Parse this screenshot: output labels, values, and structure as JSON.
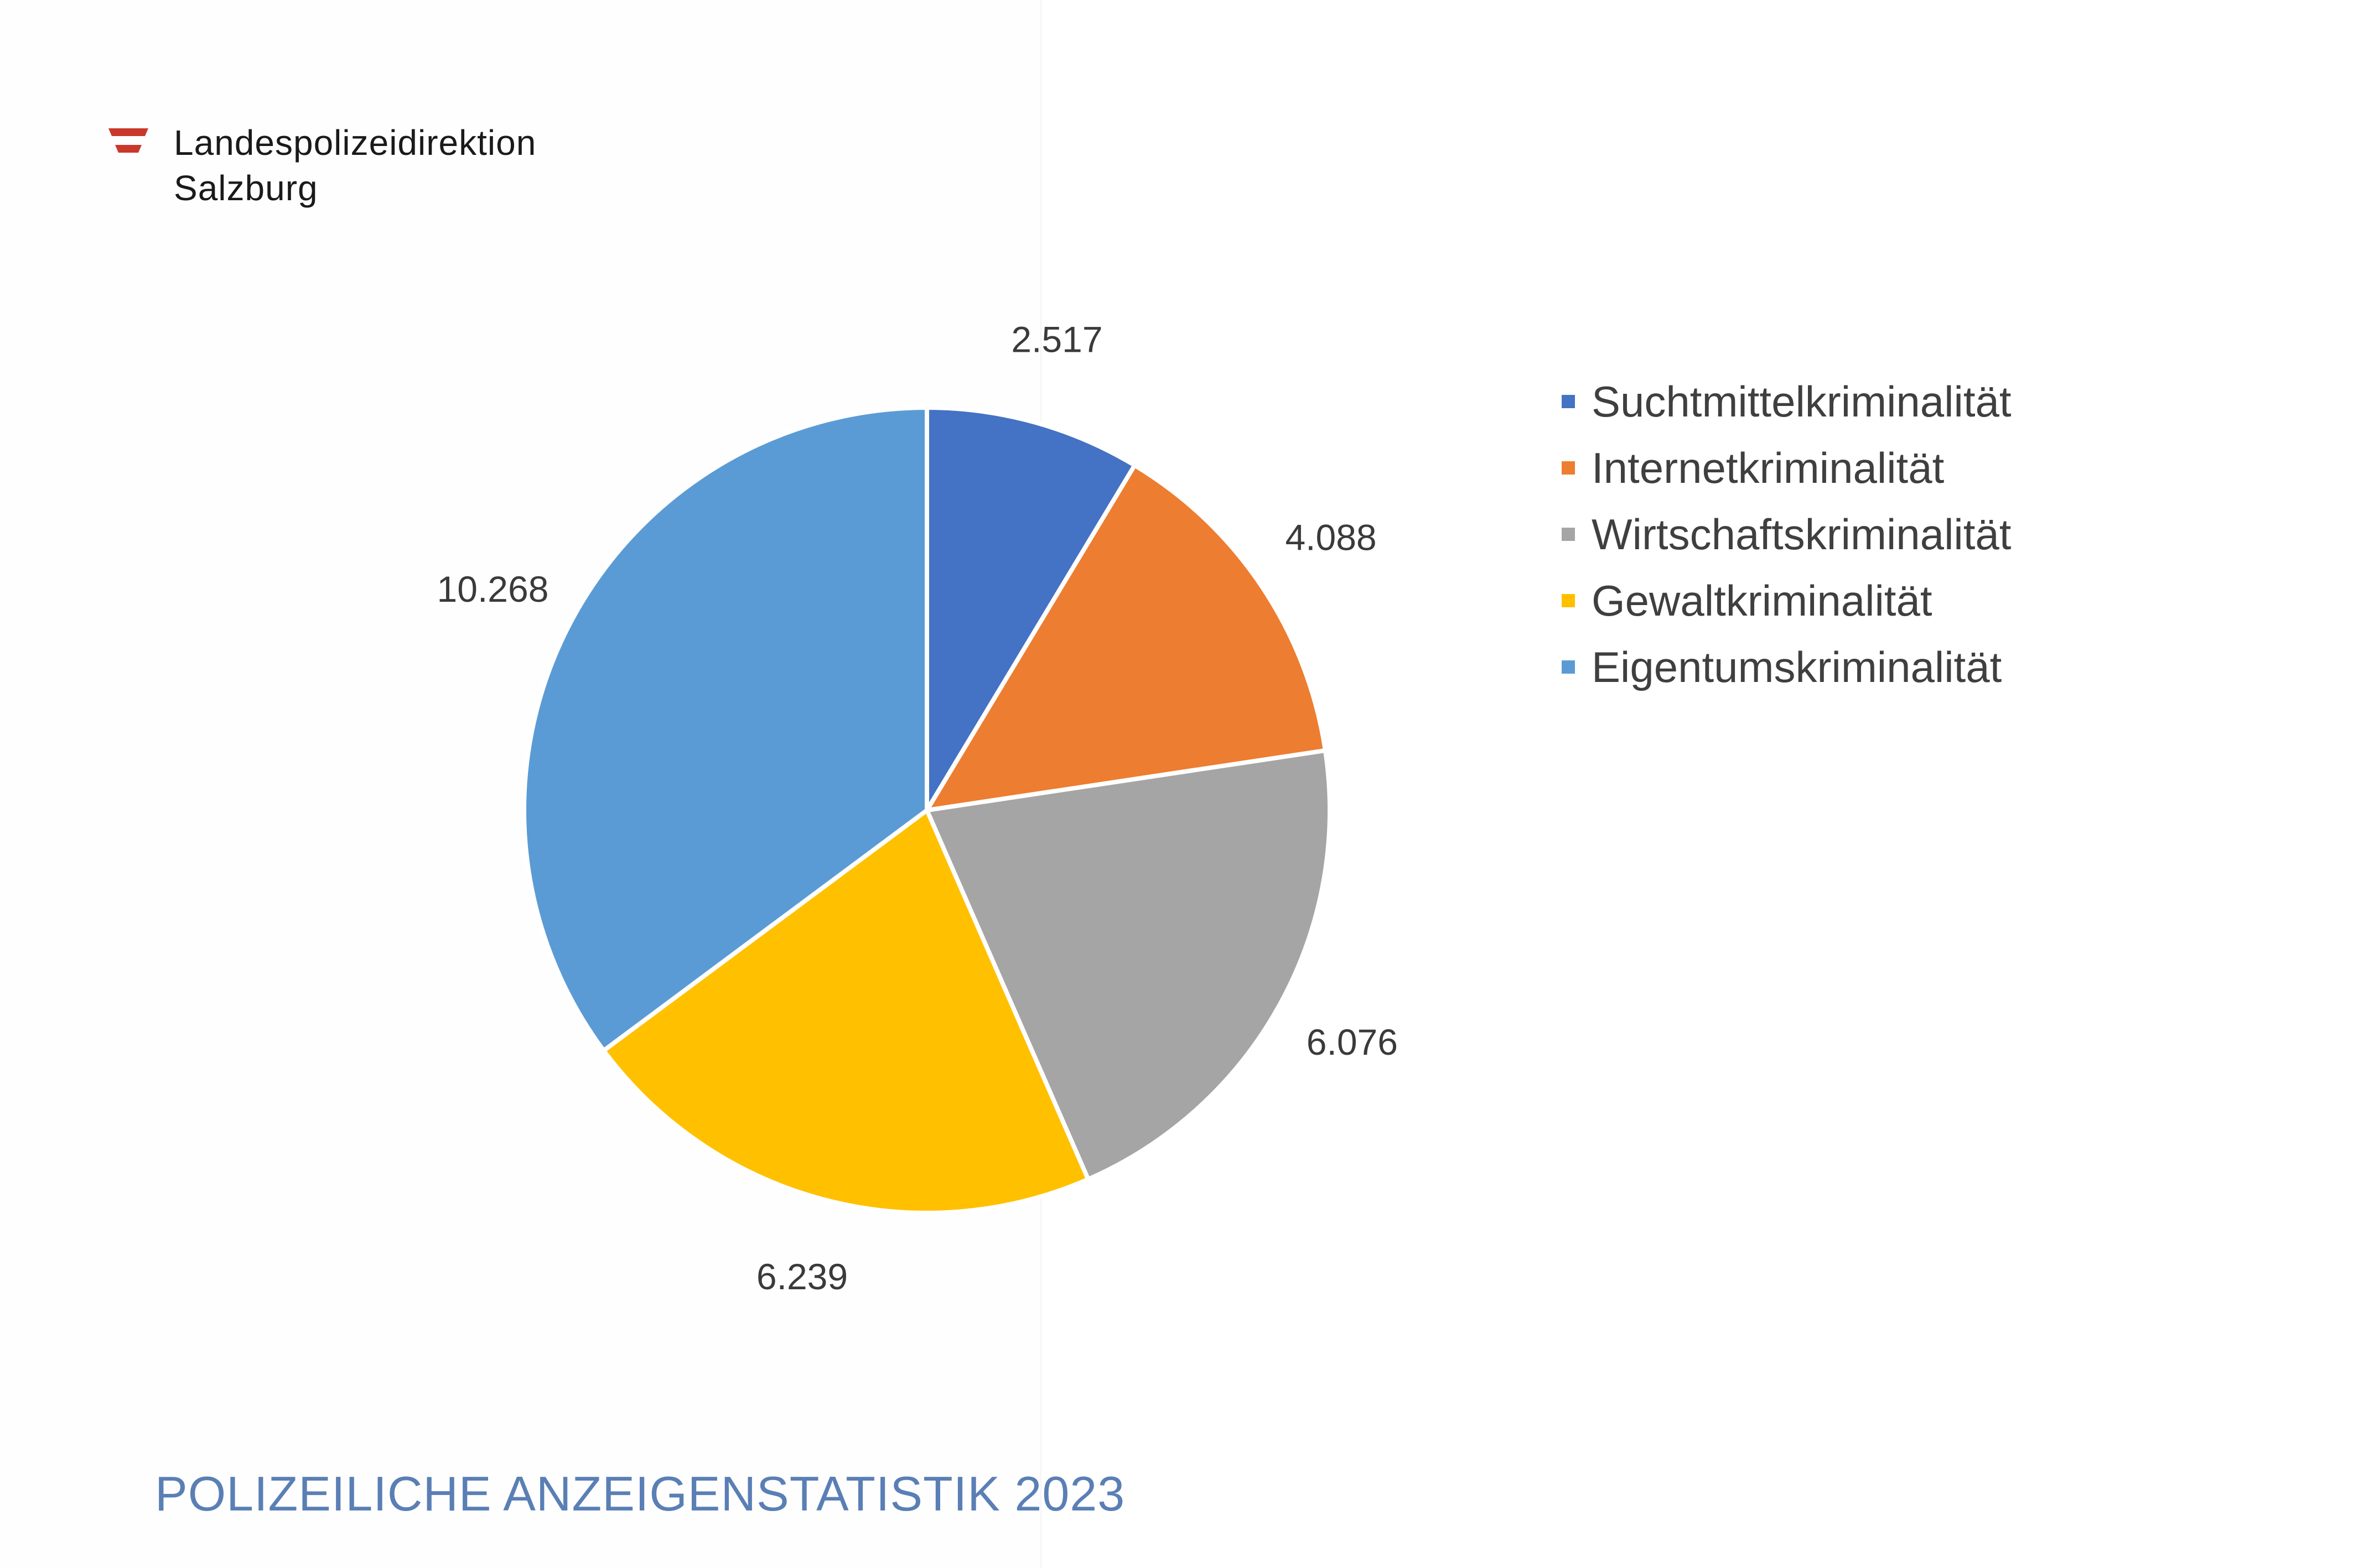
{
  "header": {
    "org_line1": "Landespolizeidirektion",
    "org_line2": "Salzburg",
    "flag_colors": [
      "#c8382b",
      "#ffffff",
      "#c8382b"
    ]
  },
  "footer": {
    "title": "POLIZEILICHE ANZEIGENSTATISTIK 2023"
  },
  "chart_data": {
    "type": "pie",
    "title": "",
    "legend_position": "right",
    "start_angle_deg": 0,
    "direction": "clockwise",
    "slices": [
      {
        "name": "Suchtmittelkriminalität",
        "value": 2517,
        "label": "2.517",
        "color": "#4472c4"
      },
      {
        "name": "Internetkriminalität",
        "value": 4088,
        "label": "4.088",
        "color": "#ed7d31"
      },
      {
        "name": "Wirtschaftskriminalität",
        "value": 6076,
        "label": "6.076",
        "color": "#a5a5a5"
      },
      {
        "name": "Gewaltkriminalität",
        "value": 6239,
        "label": "6.239",
        "color": "#ffc000"
      },
      {
        "name": "Eigentumskriminalität",
        "value": 10268,
        "label": "10.268",
        "color": "#5b9bd5"
      }
    ]
  }
}
